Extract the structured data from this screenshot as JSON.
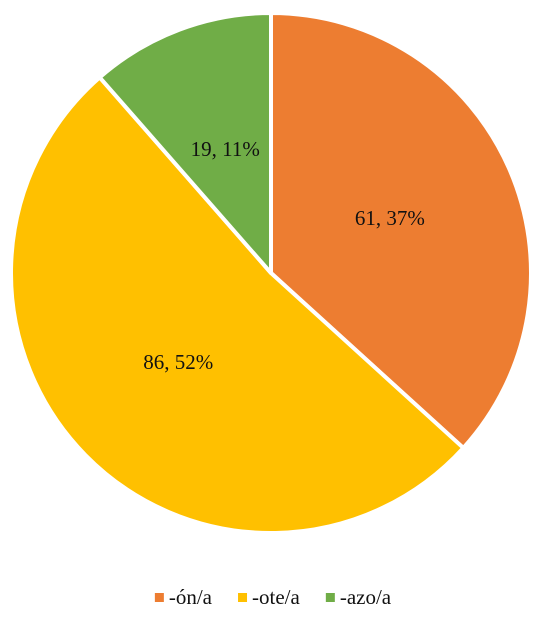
{
  "chart_data": {
    "type": "pie",
    "categories": [
      "-ón/a",
      "-ote/a",
      "-azo/a"
    ],
    "values": [
      61,
      86,
      19
    ],
    "value_labels": [
      "61, 37%",
      "86, 52%",
      "19, 11%"
    ],
    "colors": [
      "#ED7D31",
      "#FFC000",
      "#70AD47"
    ]
  }
}
